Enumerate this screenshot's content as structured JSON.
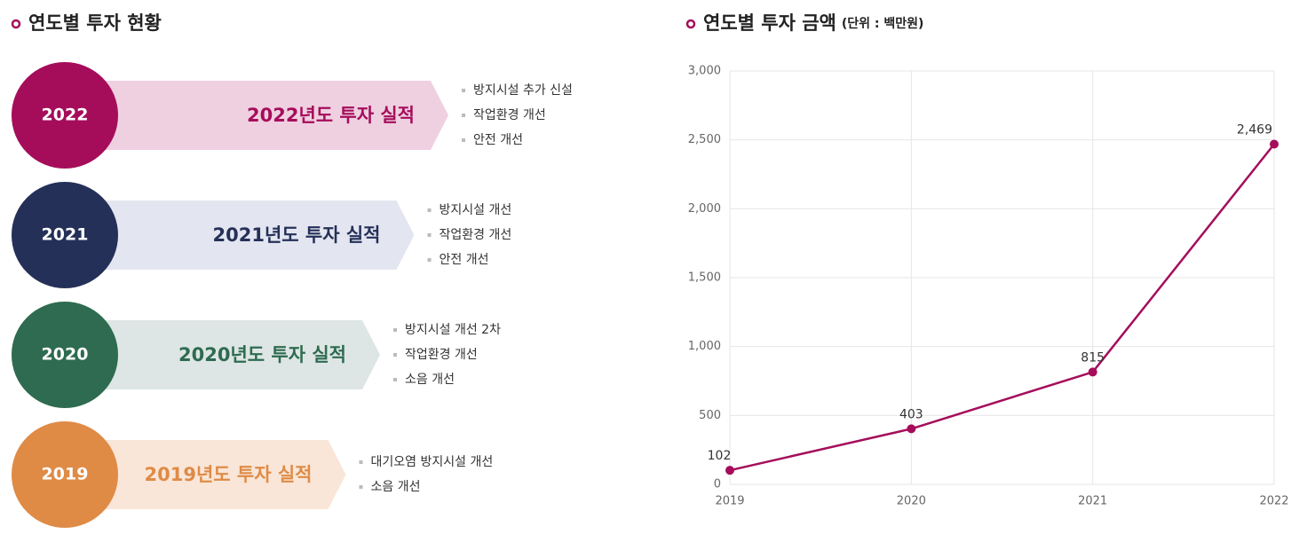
{
  "timeline": {
    "title": "연도별 투자 현황",
    "items": [
      {
        "year": "2022",
        "label": "2022년도 투자 실적",
        "color": "#a50d5b",
        "light": "#efd0e0",
        "bullets": [
          "방지시설 추가 신설",
          "작업환경 개선",
          "안전 개선"
        ]
      },
      {
        "year": "2021",
        "label": "2021년도 투자 실적",
        "color": "#253058",
        "light": "#e3e6f0",
        "bullets": [
          "방지시설 개선",
          "작업환경 개선",
          "안전 개선"
        ]
      },
      {
        "year": "2020",
        "label": "2020년도 투자 실적",
        "color": "#2e6b50",
        "light": "#dde6e4",
        "bullets": [
          "방지시설 개선 2차",
          "작업환경 개선",
          "소음 개선"
        ]
      },
      {
        "year": "2019",
        "label": "2019년도 투자 실적",
        "color": "#df8b46",
        "light": "#f9e6d8",
        "bullets": [
          "대기오염 방지시설 개선",
          "소음 개선"
        ]
      }
    ]
  },
  "chart_data": {
    "type": "line",
    "title": "연도별 투자 금액",
    "subtitle": "(단위 : 백만원)",
    "categories": [
      "2019",
      "2020",
      "2021",
      "2022"
    ],
    "series": [
      {
        "name": "투자 금액",
        "color": "#a50d5b",
        "values": [
          102,
          403,
          815,
          2469
        ],
        "value_labels": [
          "102",
          "403",
          "815",
          "2,469"
        ]
      }
    ],
    "ylim": [
      0,
      3000
    ],
    "yticks": [
      0,
      500,
      {
        "value": 1000,
        "label": "1,000"
      },
      {
        "value": 1500,
        "label": "1,500"
      },
      {
        "value": 2000,
        "label": "2,000"
      },
      {
        "value": 2500,
        "label": "2,500"
      },
      {
        "value": 3000,
        "label": "3,000"
      }
    ],
    "grid": true
  }
}
